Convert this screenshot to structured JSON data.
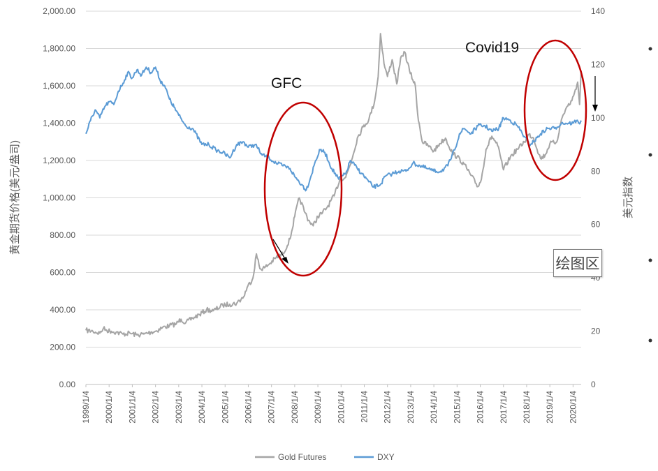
{
  "chart_data": {
    "type": "line",
    "title": "",
    "left_axis": {
      "label": "黄金期货价格(美元/盎司)",
      "range": [
        0,
        2000
      ],
      "ticks": [
        "0.00",
        "200.00",
        "400.00",
        "600.00",
        "800.00",
        "1,000.00",
        "1,200.00",
        "1,400.00",
        "1,600.00",
        "1,800.00",
        "2,000.00"
      ]
    },
    "right_axis": {
      "label": "美元指数",
      "range": [
        0,
        140
      ],
      "ticks": [
        "0",
        "20",
        "40",
        "60",
        "80",
        "100",
        "120",
        "140"
      ]
    },
    "x_axis": {
      "range": [
        1999.0,
        2020.35
      ],
      "ticks": [
        "1999/1/4",
        "2000/1/4",
        "2001/1/4",
        "2002/1/4",
        "2003/1/4",
        "2004/1/4",
        "2005/1/4",
        "2006/1/4",
        "2007/1/4",
        "2008/1/4",
        "2009/1/4",
        "2010/1/4",
        "2011/1/4",
        "2012/1/4",
        "2013/1/4",
        "2014/1/4",
        "2015/1/4",
        "2016/1/4",
        "2017/1/4",
        "2018/1/4",
        "2019/1/4",
        "2020/1/4"
      ]
    },
    "grid": true,
    "legend_position": "bottom",
    "series": [
      {
        "name": "Gold Futures",
        "axis": "left",
        "color": "#a5a5a5",
        "x": [
          1999.0,
          1999.3,
          1999.6,
          1999.75,
          1999.9,
          2000.1,
          2000.3,
          2000.6,
          2000.9,
          2001.2,
          2001.5,
          2001.8,
          2002.0,
          2002.3,
          2002.6,
          2002.9,
          2003.1,
          2003.3,
          2003.6,
          2003.9,
          2004.2,
          2004.5,
          2004.9,
          2005.2,
          2005.5,
          2005.8,
          2005.95,
          2006.2,
          2006.35,
          2006.5,
          2006.7,
          2006.95,
          2007.2,
          2007.5,
          2007.8,
          2008.0,
          2008.2,
          2008.45,
          2008.6,
          2008.8,
          2009.0,
          2009.2,
          2009.4,
          2009.7,
          2009.95,
          2010.2,
          2010.45,
          2010.7,
          2010.95,
          2011.2,
          2011.45,
          2011.6,
          2011.7,
          2011.85,
          2012.0,
          2012.2,
          2012.4,
          2012.6,
          2012.75,
          2012.95,
          2013.2,
          2013.3,
          2013.5,
          2013.75,
          2014.0,
          2014.25,
          2014.5,
          2014.8,
          2015.0,
          2015.3,
          2015.6,
          2015.9,
          2016.05,
          2016.25,
          2016.5,
          2016.75,
          2017.0,
          2017.3,
          2017.6,
          2017.9,
          2018.1,
          2018.3,
          2018.6,
          2018.8,
          2019.0,
          2019.3,
          2019.5,
          2019.7,
          2019.95,
          2020.1,
          2020.2,
          2020.28,
          2020.35
        ],
        "values": [
          290,
          285,
          275,
          300,
          290,
          285,
          280,
          270,
          275,
          265,
          270,
          280,
          285,
          305,
          315,
          325,
          350,
          330,
          355,
          375,
          400,
          395,
          425,
          430,
          435,
          470,
          520,
          570,
          700,
          620,
          625,
          650,
          680,
          700,
          780,
          900,
          1000,
          920,
          880,
          850,
          900,
          920,
          950,
          1010,
          1100,
          1110,
          1200,
          1320,
          1380,
          1420,
          1520,
          1650,
          1880,
          1720,
          1650,
          1740,
          1610,
          1760,
          1780,
          1680,
          1600,
          1450,
          1300,
          1280,
          1250,
          1290,
          1320,
          1240,
          1220,
          1180,
          1120,
          1060,
          1100,
          1260,
          1330,
          1280,
          1150,
          1220,
          1260,
          1300,
          1340,
          1320,
          1210,
          1230,
          1290,
          1300,
          1420,
          1480,
          1520,
          1580,
          1620,
          1500,
          1680
        ]
      },
      {
        "name": "DXY",
        "axis": "right",
        "color": "#5b9bd5",
        "x": [
          1999.0,
          1999.2,
          1999.4,
          1999.6,
          1999.8,
          2000.0,
          2000.2,
          2000.4,
          2000.6,
          2000.8,
          2001.0,
          2001.2,
          2001.4,
          2001.6,
          2001.8,
          2002.0,
          2002.2,
          2002.4,
          2002.6,
          2002.8,
          2003.0,
          2003.3,
          2003.6,
          2004.0,
          2004.3,
          2004.6,
          2004.9,
          2005.2,
          2005.5,
          2005.8,
          2006.0,
          2006.3,
          2006.6,
          2006.9,
          2007.2,
          2007.5,
          2007.8,
          2008.0,
          2008.3,
          2008.5,
          2008.7,
          2008.9,
          2009.1,
          2009.3,
          2009.6,
          2009.9,
          2010.2,
          2010.4,
          2010.7,
          2010.9,
          2011.2,
          2011.4,
          2011.7,
          2011.9,
          2012.2,
          2012.5,
          2012.8,
          2013.1,
          2013.4,
          2013.7,
          2014.0,
          2014.3,
          2014.6,
          2014.9,
          2015.1,
          2015.3,
          2015.6,
          2015.9,
          2016.2,
          2016.5,
          2016.8,
          2017.0,
          2017.3,
          2017.6,
          2017.9,
          2018.1,
          2018.3,
          2018.6,
          2018.9,
          2019.2,
          2019.5,
          2019.8,
          2020.0,
          2020.15,
          2020.25,
          2020.35
        ],
        "values": [
          94,
          99,
          103,
          100,
          104,
          106,
          105,
          110,
          113,
          117,
          115,
          118,
          116,
          119,
          117,
          119,
          114,
          112,
          107,
          104,
          101,
          97,
          96,
          90,
          90,
          88,
          87,
          85,
          90,
          91,
          89,
          90,
          86,
          85,
          83,
          82,
          81,
          78,
          75,
          73,
          78,
          84,
          88,
          87,
          81,
          77,
          79,
          84,
          81,
          79,
          76,
          74,
          75,
          78,
          79,
          80,
          80,
          83,
          82,
          81,
          80,
          80,
          82,
          88,
          94,
          96,
          94,
          97,
          97,
          95,
          96,
          100,
          99,
          97,
          93,
          90,
          91,
          94,
          96,
          96,
          98,
          98,
          98,
          99,
          98,
          99
        ]
      }
    ]
  },
  "annotations": {
    "gfc_label": "GFC",
    "covid_label": "Covid19",
    "plot_area_label": "绘图区"
  },
  "colors": {
    "ellipse": "#c00000",
    "grid": "#d9d9d9",
    "axis_text": "#595959"
  }
}
